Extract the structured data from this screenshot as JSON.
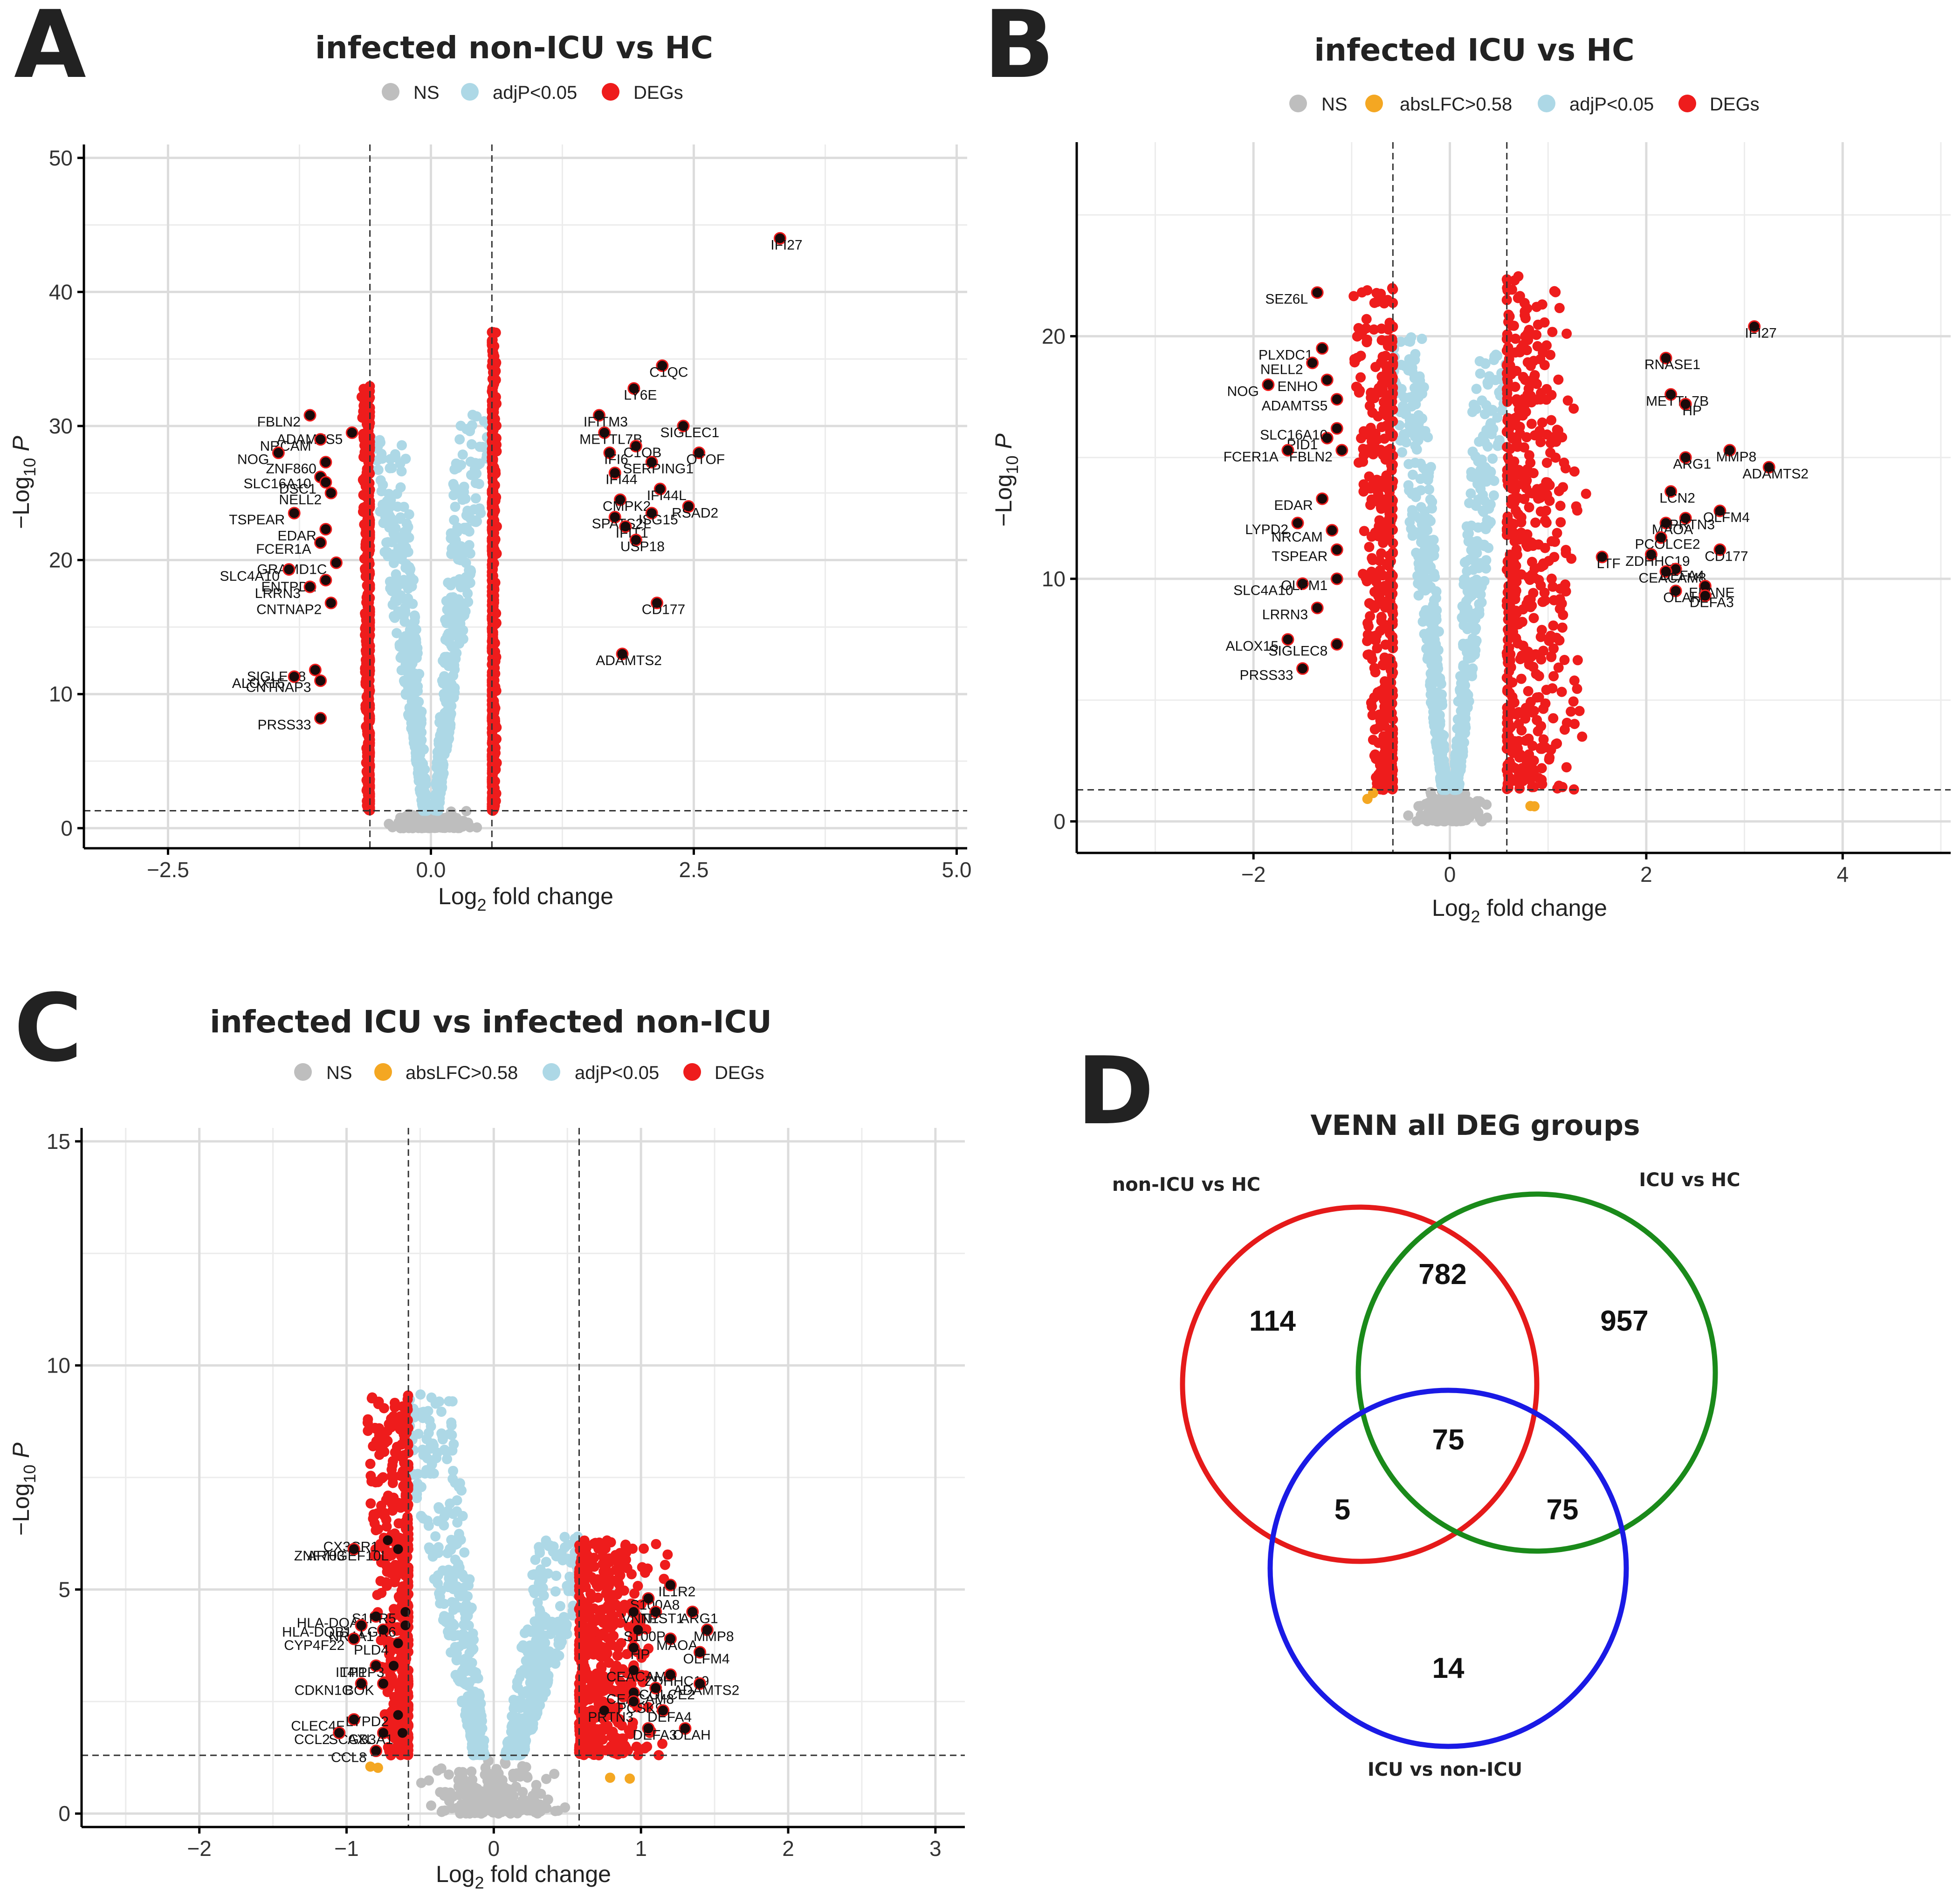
{
  "colors": {
    "ns": "#bebebe",
    "abslfc": "#f4a722",
    "adjp": "#add8e6",
    "degs": "#ee1c1c",
    "label_dot": "#1a0a0a"
  },
  "chart_data": [
    {
      "type": "scatter",
      "panel": "A",
      "title": "infected non-ICU vs HC",
      "legend": [
        "NS",
        "adjP<0.05",
        "DEGs"
      ],
      "xlabel": "Log2 fold change",
      "ylabel": "−Log10 P",
      "xlim": [
        -3.3,
        5.1
      ],
      "ylim": [
        -1.5,
        51
      ],
      "xticks": [
        -2.5,
        0.0,
        2.5,
        5.0
      ],
      "xtick_labels": [
        "−2.5",
        "0.0",
        "2.5",
        "5.0"
      ],
      "yticks": [
        0,
        10,
        20,
        30,
        40,
        50
      ],
      "ytick_labels": [
        "0",
        "10",
        "20",
        "30",
        "40",
        "50"
      ],
      "fc_cutoff": 0.58,
      "p_cutoff": 1.3,
      "cloud": {
        "left_edge": -0.66,
        "right_edge": 0.62,
        "neg_max": 33,
        "pos_max": 37,
        "ns_width": 0.45
      },
      "labels": [
        {
          "g": "IFI27",
          "x": 3.32,
          "y": 44
        },
        {
          "g": "C1QC",
          "x": 2.2,
          "y": 34.5
        },
        {
          "g": "LY6E",
          "x": 1.93,
          "y": 32.8
        },
        {
          "g": "IFITM3",
          "x": 1.6,
          "y": 30.8
        },
        {
          "g": "SIGLEC1",
          "x": 2.4,
          "y": 30
        },
        {
          "g": "METTL7B",
          "x": 1.65,
          "y": 29.5
        },
        {
          "g": "C1QB",
          "x": 1.95,
          "y": 28.5
        },
        {
          "g": "OTOF",
          "x": 2.55,
          "y": 28
        },
        {
          "g": "IFI6",
          "x": 1.7,
          "y": 28
        },
        {
          "g": "SERPING1",
          "x": 2.1,
          "y": 27.3
        },
        {
          "g": "IFI44",
          "x": 1.75,
          "y": 26.5
        },
        {
          "g": "IFI44L",
          "x": 2.18,
          "y": 25.3
        },
        {
          "g": "CMPK2",
          "x": 1.8,
          "y": 24.5
        },
        {
          "g": "RSAD2",
          "x": 2.45,
          "y": 24
        },
        {
          "g": "SPATS2L",
          "x": 1.75,
          "y": 23.2
        },
        {
          "g": "ISG15",
          "x": 2.1,
          "y": 23.5
        },
        {
          "g": "IFIT1",
          "x": 1.85,
          "y": 22.5
        },
        {
          "g": "USP18",
          "x": 1.95,
          "y": 21.5
        },
        {
          "g": "CD177",
          "x": 2.15,
          "y": 16.8
        },
        {
          "g": "ADAMTS2",
          "x": 1.82,
          "y": 13
        },
        {
          "g": "FBLN2",
          "x": -1.15,
          "y": 30.8
        },
        {
          "g": "ADAMTS5",
          "x": -0.75,
          "y": 29.5
        },
        {
          "g": "NRCAM",
          "x": -1.05,
          "y": 29
        },
        {
          "g": "NOG",
          "x": -1.45,
          "y": 28
        },
        {
          "g": "ZNF860",
          "x": -1.0,
          "y": 27.3
        },
        {
          "g": "SLC16A10",
          "x": -1.05,
          "y": 26.2
        },
        {
          "g": "DSC1",
          "x": -1.0,
          "y": 25.8
        },
        {
          "g": "NELL2",
          "x": -0.95,
          "y": 25
        },
        {
          "g": "TSPEAR",
          "x": -1.3,
          "y": 23.5
        },
        {
          "g": "EDAR",
          "x": -1.0,
          "y": 22.3
        },
        {
          "g": "FCER1A",
          "x": -1.05,
          "y": 21.3
        },
        {
          "g": "GRAMD1C",
          "x": -0.9,
          "y": 19.8
        },
        {
          "g": "SLC4A10",
          "x": -1.35,
          "y": 19.3
        },
        {
          "g": "ENTPD2",
          "x": -1.0,
          "y": 18.5
        },
        {
          "g": "LRRN3",
          "x": -1.15,
          "y": 18
        },
        {
          "g": "CNTNAP2",
          "x": -0.95,
          "y": 16.8
        },
        {
          "g": "SIGLEC8",
          "x": -1.1,
          "y": 11.8
        },
        {
          "g": "ALOX15",
          "x": -1.3,
          "y": 11.3
        },
        {
          "g": "CNTNAP3",
          "x": -1.05,
          "y": 11.0
        },
        {
          "g": "PRSS33",
          "x": -1.05,
          "y": 8.2
        }
      ]
    },
    {
      "type": "scatter",
      "panel": "B",
      "title": "infected ICU vs HC",
      "legend": [
        "NS",
        "absLFC>0.58",
        "adjP<0.05",
        "DEGs"
      ],
      "xlabel": "Log2 fold change",
      "ylabel": "−Log10 P",
      "xlim": [
        -3.8,
        5.1
      ],
      "ylim": [
        -1.3,
        28
      ],
      "xticks": [
        -2,
        0,
        2,
        4
      ],
      "xtick_labels": [
        "−2",
        "0",
        "2",
        "4"
      ],
      "yticks": [
        0,
        10,
        20
      ],
      "ytick_labels": [
        "0",
        "10",
        "20"
      ],
      "fc_cutoff": 0.58,
      "p_cutoff": 1.3,
      "cloud": {
        "left_edge": -1.05,
        "right_edge": 1.25,
        "neg_max": 22,
        "pos_max": 22.5,
        "ns_width": 0.45
      },
      "labels": [
        {
          "g": "IFI27",
          "x": 3.1,
          "y": 20.4
        },
        {
          "g": "RNASE1",
          "x": 2.2,
          "y": 19.1
        },
        {
          "g": "METTL7B",
          "x": 2.25,
          "y": 17.6
        },
        {
          "g": "HP",
          "x": 2.4,
          "y": 17.2
        },
        {
          "g": "MMP8",
          "x": 2.85,
          "y": 15.3
        },
        {
          "g": "ARG1",
          "x": 2.4,
          "y": 15
        },
        {
          "g": "ADAMTS2",
          "x": 3.25,
          "y": 14.6
        },
        {
          "g": "LCN2",
          "x": 2.25,
          "y": 13.6
        },
        {
          "g": "OLFM4",
          "x": 2.75,
          "y": 12.8
        },
        {
          "g": "MAOA",
          "x": 2.2,
          "y": 12.3
        },
        {
          "g": "PRTN3",
          "x": 2.4,
          "y": 12.5
        },
        {
          "g": "PCOLCE2",
          "x": 2.15,
          "y": 11.7
        },
        {
          "g": "ZDHHC19",
          "x": 2.05,
          "y": 11.0
        },
        {
          "g": "LTF",
          "x": 1.55,
          "y": 10.9
        },
        {
          "g": "CD177",
          "x": 2.75,
          "y": 11.2
        },
        {
          "g": "DEFA4",
          "x": 2.3,
          "y": 10.4
        },
        {
          "g": "CEACAM8",
          "x": 2.2,
          "y": 10.3
        },
        {
          "g": "ELANE",
          "x": 2.6,
          "y": 9.7
        },
        {
          "g": "OLAH",
          "x": 2.3,
          "y": 9.5
        },
        {
          "g": "DEFA3",
          "x": 2.6,
          "y": 9.3
        },
        {
          "g": "SEZ6L",
          "x": -1.35,
          "y": 21.8
        },
        {
          "g": "PLXDC1",
          "x": -1.3,
          "y": 19.5
        },
        {
          "g": "NELL2",
          "x": -1.4,
          "y": 18.9
        },
        {
          "g": "ENHO",
          "x": -1.25,
          "y": 18.2
        },
        {
          "g": "NOG",
          "x": -1.85,
          "y": 18.0
        },
        {
          "g": "ADAMTS5",
          "x": -1.15,
          "y": 17.4
        },
        {
          "g": "PID1",
          "x": -1.25,
          "y": 15.8
        },
        {
          "g": "SLC16A10",
          "x": -1.15,
          "y": 16.2
        },
        {
          "g": "FCER1A",
          "x": -1.65,
          "y": 15.3
        },
        {
          "g": "FBLN2",
          "x": -1.1,
          "y": 15.3
        },
        {
          "g": "EDAR",
          "x": -1.3,
          "y": 13.3
        },
        {
          "g": "LYPD2",
          "x": -1.55,
          "y": 12.3
        },
        {
          "g": "NRCAM",
          "x": -1.2,
          "y": 12.0
        },
        {
          "g": "TSPEAR",
          "x": -1.15,
          "y": 11.2
        },
        {
          "g": "SLC4A10",
          "x": -1.5,
          "y": 9.8
        },
        {
          "g": "OLFM1",
          "x": -1.15,
          "y": 10.0
        },
        {
          "g": "LRRN3",
          "x": -1.35,
          "y": 8.8
        },
        {
          "g": "ALOX15",
          "x": -1.65,
          "y": 7.5
        },
        {
          "g": "SIGLEC8",
          "x": -1.15,
          "y": 7.3
        },
        {
          "g": "PRSS33",
          "x": -1.5,
          "y": 6.3
        }
      ]
    },
    {
      "type": "scatter",
      "panel": "C",
      "title": "infected ICU vs infected non-ICU",
      "legend": [
        "NS",
        "absLFC>0.58",
        "adjP<0.05",
        "DEGs"
      ],
      "xlabel": "Log2 fold change",
      "ylabel": "−Log10 P",
      "xlim": [
        -2.8,
        3.2
      ],
      "ylim": [
        -0.3,
        15.3
      ],
      "xticks": [
        -2,
        -1,
        0,
        1,
        2,
        3
      ],
      "xtick_labels": [
        "−2",
        "−1",
        "0",
        "1",
        "2",
        "3"
      ],
      "yticks": [
        0,
        5,
        10,
        15
      ],
      "ytick_labels": [
        "0",
        "5",
        "10",
        "15"
      ],
      "fc_cutoff": 0.58,
      "p_cutoff": 1.3,
      "cloud": {
        "left_edge": -0.9,
        "right_edge": 1.05,
        "neg_max": 9.5,
        "pos_max": 6.1,
        "ns_width": 0.55
      },
      "labels": [
        {
          "g": "CX3CR1",
          "x": -0.72,
          "y": 6.1
        },
        {
          "g": "ZNF703",
          "x": -0.95,
          "y": 5.9
        },
        {
          "g": "ARHGEF10L",
          "x": -0.65,
          "y": 5.9
        },
        {
          "g": "HLA-DQA1",
          "x": -0.8,
          "y": 4.4
        },
        {
          "g": "S1PR5",
          "x": -0.6,
          "y": 4.5
        },
        {
          "g": "NR4A1",
          "x": -0.75,
          "y": 4.1
        },
        {
          "g": "HLA-DQB1",
          "x": -0.9,
          "y": 4.2
        },
        {
          "g": "LGR6",
          "x": -0.6,
          "y": 4.2
        },
        {
          "g": "CYP4F22",
          "x": -0.95,
          "y": 3.9
        },
        {
          "g": "PLD4",
          "x": -0.65,
          "y": 3.8
        },
        {
          "g": "IL4I1",
          "x": -0.8,
          "y": 3.3
        },
        {
          "g": "TPPP3",
          "x": -0.68,
          "y": 3.3
        },
        {
          "g": "CDKN1C",
          "x": -0.9,
          "y": 2.9
        },
        {
          "g": "BOK",
          "x": -0.75,
          "y": 2.9
        },
        {
          "g": "CLEC4F",
          "x": -0.95,
          "y": 2.1
        },
        {
          "g": "LYPD2",
          "x": -0.65,
          "y": 2.2
        },
        {
          "g": "AXL",
          "x": -0.75,
          "y": 1.8
        },
        {
          "g": "SCGB3A1",
          "x": -0.62,
          "y": 1.8
        },
        {
          "g": "CCL2",
          "x": -1.05,
          "y": 1.8
        },
        {
          "g": "CCL8",
          "x": -0.8,
          "y": 1.4
        },
        {
          "g": "S100A8",
          "x": 1.05,
          "y": 4.8
        },
        {
          "g": "IL1R2",
          "x": 1.2,
          "y": 5.1
        },
        {
          "g": "VNN1",
          "x": 0.95,
          "y": 4.5
        },
        {
          "g": "TPST1",
          "x": 1.1,
          "y": 4.5
        },
        {
          "g": "ARG1",
          "x": 1.35,
          "y": 4.5
        },
        {
          "g": "S100P",
          "x": 0.98,
          "y": 4.1
        },
        {
          "g": "MAOA",
          "x": 1.2,
          "y": 3.9
        },
        {
          "g": "MMP8",
          "x": 1.45,
          "y": 4.1
        },
        {
          "g": "HP",
          "x": 0.95,
          "y": 3.7
        },
        {
          "g": "OLFM4",
          "x": 1.4,
          "y": 3.6
        },
        {
          "g": "CEACAM6",
          "x": 0.95,
          "y": 3.2
        },
        {
          "g": "ZDHHC19",
          "x": 1.2,
          "y": 3.1
        },
        {
          "g": "CEACAM8",
          "x": 0.95,
          "y": 2.7
        },
        {
          "g": "PCOLCE2",
          "x": 1.1,
          "y": 2.8
        },
        {
          "g": "ADAMTS2",
          "x": 1.4,
          "y": 2.9
        },
        {
          "g": "PRTN3",
          "x": 0.75,
          "y": 2.3
        },
        {
          "g": "PCSK9",
          "x": 0.95,
          "y": 2.5
        },
        {
          "g": "DEFA4",
          "x": 1.15,
          "y": 2.3
        },
        {
          "g": "OLAH",
          "x": 1.3,
          "y": 1.9
        },
        {
          "g": "DEFA3",
          "x": 1.05,
          "y": 1.9
        }
      ]
    }
  ],
  "venn": {
    "panel": "D",
    "title": "VENN all DEG groups",
    "sets": [
      {
        "name": "non-ICU vs HC",
        "color": "#e51a1a"
      },
      {
        "name": "ICU vs HC",
        "color": "#1a8a1a"
      },
      {
        "name": "ICU vs non-ICU",
        "color": "#1a1ae5"
      }
    ],
    "regions": [
      {
        "sets": [
          "non-ICU vs HC"
        ],
        "count": "114"
      },
      {
        "sets": [
          "ICU vs HC"
        ],
        "count": "957"
      },
      {
        "sets": [
          "ICU vs non-ICU"
        ],
        "count": "14"
      },
      {
        "sets": [
          "non-ICU vs HC",
          "ICU vs HC"
        ],
        "count": "782"
      },
      {
        "sets": [
          "non-ICU vs HC",
          "ICU vs non-ICU"
        ],
        "count": "5"
      },
      {
        "sets": [
          "ICU vs HC",
          "ICU vs non-ICU"
        ],
        "count": "75"
      },
      {
        "sets": [
          "non-ICU vs HC",
          "ICU vs HC",
          "ICU vs non-ICU"
        ],
        "count": "75"
      }
    ]
  }
}
